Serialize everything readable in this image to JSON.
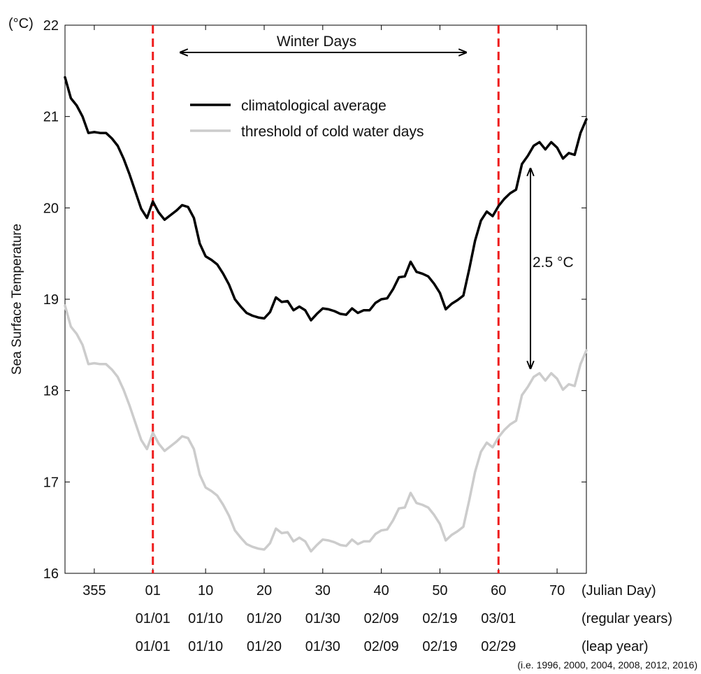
{
  "chart_data": {
    "type": "line",
    "ylabel": "Sea Surface Temperature",
    "y_unit_label": "(°C)",
    "ylim": [
      16,
      22
    ],
    "yticks": [
      16,
      17,
      18,
      19,
      20,
      21,
      22
    ],
    "xlim": [
      -14,
      75
    ],
    "xticks": [
      {
        "x": -9,
        "julian": "355",
        "regular": "",
        "leap": ""
      },
      {
        "x": 1,
        "julian": "01",
        "regular": "01/01",
        "leap": "01/01"
      },
      {
        "x": 10,
        "julian": "10",
        "regular": "01/10",
        "leap": "01/10"
      },
      {
        "x": 20,
        "julian": "20",
        "regular": "01/20",
        "leap": "01/20"
      },
      {
        "x": 30,
        "julian": "30",
        "regular": "01/30",
        "leap": "01/30"
      },
      {
        "x": 40,
        "julian": "40",
        "regular": "02/09",
        "leap": "02/09"
      },
      {
        "x": 50,
        "julian": "50",
        "regular": "02/19",
        "leap": "02/19"
      },
      {
        "x": 60,
        "julian": "60",
        "regular": "03/01",
        "leap": "02/29"
      },
      {
        "x": 70,
        "julian": "70",
        "regular": "",
        "leap": ""
      }
    ],
    "row_labels": {
      "julian": "(Julian Day)",
      "regular": "(regular years)",
      "leap": "(leap year)",
      "leap_note": "(i.e. 1996, 2000, 2004, 2008, 2012, 2016)"
    },
    "legend": {
      "position": "upper-center",
      "entries": [
        {
          "label": "climatological average",
          "color": "#000000"
        },
        {
          "label": "threshold of cold water days",
          "color": "#cccccc"
        }
      ]
    },
    "vlines": [
      1,
      60
    ],
    "vline_color": "#ee1c1c",
    "annotations": {
      "winter_days": {
        "text": "Winter Days",
        "from": 4,
        "to": 55
      },
      "difference": {
        "text": "2.5",
        "unit": "°C",
        "x": 65,
        "from": 20.45,
        "to": 18.25
      }
    },
    "x": [
      -14,
      -13,
      -12,
      -11,
      -10,
      -9,
      -8,
      -7,
      -6,
      -5,
      -4,
      -3,
      -2,
      -1,
      0,
      1,
      2,
      3,
      4,
      5,
      6,
      7,
      8,
      9,
      10,
      11,
      12,
      13,
      14,
      15,
      16,
      17,
      18,
      19,
      20,
      21,
      22,
      23,
      24,
      25,
      26,
      27,
      28,
      29,
      30,
      31,
      32,
      33,
      34,
      35,
      36,
      37,
      38,
      39,
      40,
      41,
      42,
      43,
      44,
      45,
      46,
      47,
      48,
      49,
      50,
      51,
      52,
      53,
      54,
      55,
      56,
      57,
      58,
      59,
      60,
      61,
      62,
      63,
      64,
      65,
      66,
      67,
      68,
      69,
      70,
      71,
      72,
      73,
      74,
      75
    ],
    "series": [
      {
        "name": "climatological average",
        "color": "#000000",
        "values": [
          21.43,
          21.2,
          21.12,
          21.0,
          20.82,
          20.83,
          20.82,
          20.82,
          20.76,
          20.68,
          20.54,
          20.37,
          20.18,
          19.99,
          19.89,
          20.07,
          19.95,
          19.87,
          19.92,
          19.97,
          20.03,
          20.01,
          19.89,
          19.61,
          19.47,
          19.43,
          19.38,
          19.28,
          19.16,
          19.0,
          18.92,
          18.85,
          18.82,
          18.8,
          18.79,
          18.86,
          19.02,
          18.97,
          18.98,
          18.88,
          18.92,
          18.88,
          18.77,
          18.84,
          18.9,
          18.89,
          18.87,
          18.84,
          18.83,
          18.9,
          18.85,
          18.88,
          18.88,
          18.96,
          19.0,
          19.01,
          19.11,
          19.24,
          19.25,
          19.41,
          19.3,
          19.28,
          19.25,
          19.17,
          19.07,
          18.89,
          18.95,
          18.99,
          19.04,
          19.33,
          19.64,
          19.86,
          19.96,
          19.91,
          20.02,
          20.1,
          20.16,
          20.2,
          20.48,
          20.57,
          20.68,
          20.72,
          20.64,
          20.72,
          20.66,
          20.54,
          20.6,
          20.58,
          20.82,
          20.97
        ]
      },
      {
        "name": "threshold of cold water days",
        "color": "#cccccc",
        "values": [
          18.93,
          18.7,
          18.62,
          18.5,
          18.29,
          18.3,
          18.29,
          18.29,
          18.23,
          18.15,
          18.01,
          17.84,
          17.65,
          17.46,
          17.36,
          17.54,
          17.42,
          17.34,
          17.39,
          17.44,
          17.5,
          17.48,
          17.36,
          17.08,
          16.94,
          16.9,
          16.85,
          16.75,
          16.63,
          16.47,
          16.39,
          16.32,
          16.29,
          16.27,
          16.26,
          16.33,
          16.49,
          16.44,
          16.45,
          16.35,
          16.39,
          16.35,
          16.24,
          16.31,
          16.37,
          16.36,
          16.34,
          16.31,
          16.3,
          16.37,
          16.32,
          16.35,
          16.35,
          16.43,
          16.47,
          16.48,
          16.58,
          16.71,
          16.72,
          16.88,
          16.77,
          16.75,
          16.72,
          16.64,
          16.54,
          16.36,
          16.42,
          16.46,
          16.51,
          16.8,
          17.11,
          17.33,
          17.43,
          17.38,
          17.49,
          17.57,
          17.63,
          17.67,
          17.95,
          18.04,
          18.15,
          18.19,
          18.11,
          18.19,
          18.13,
          18.01,
          18.07,
          18.05,
          18.29,
          18.44
        ]
      }
    ]
  }
}
